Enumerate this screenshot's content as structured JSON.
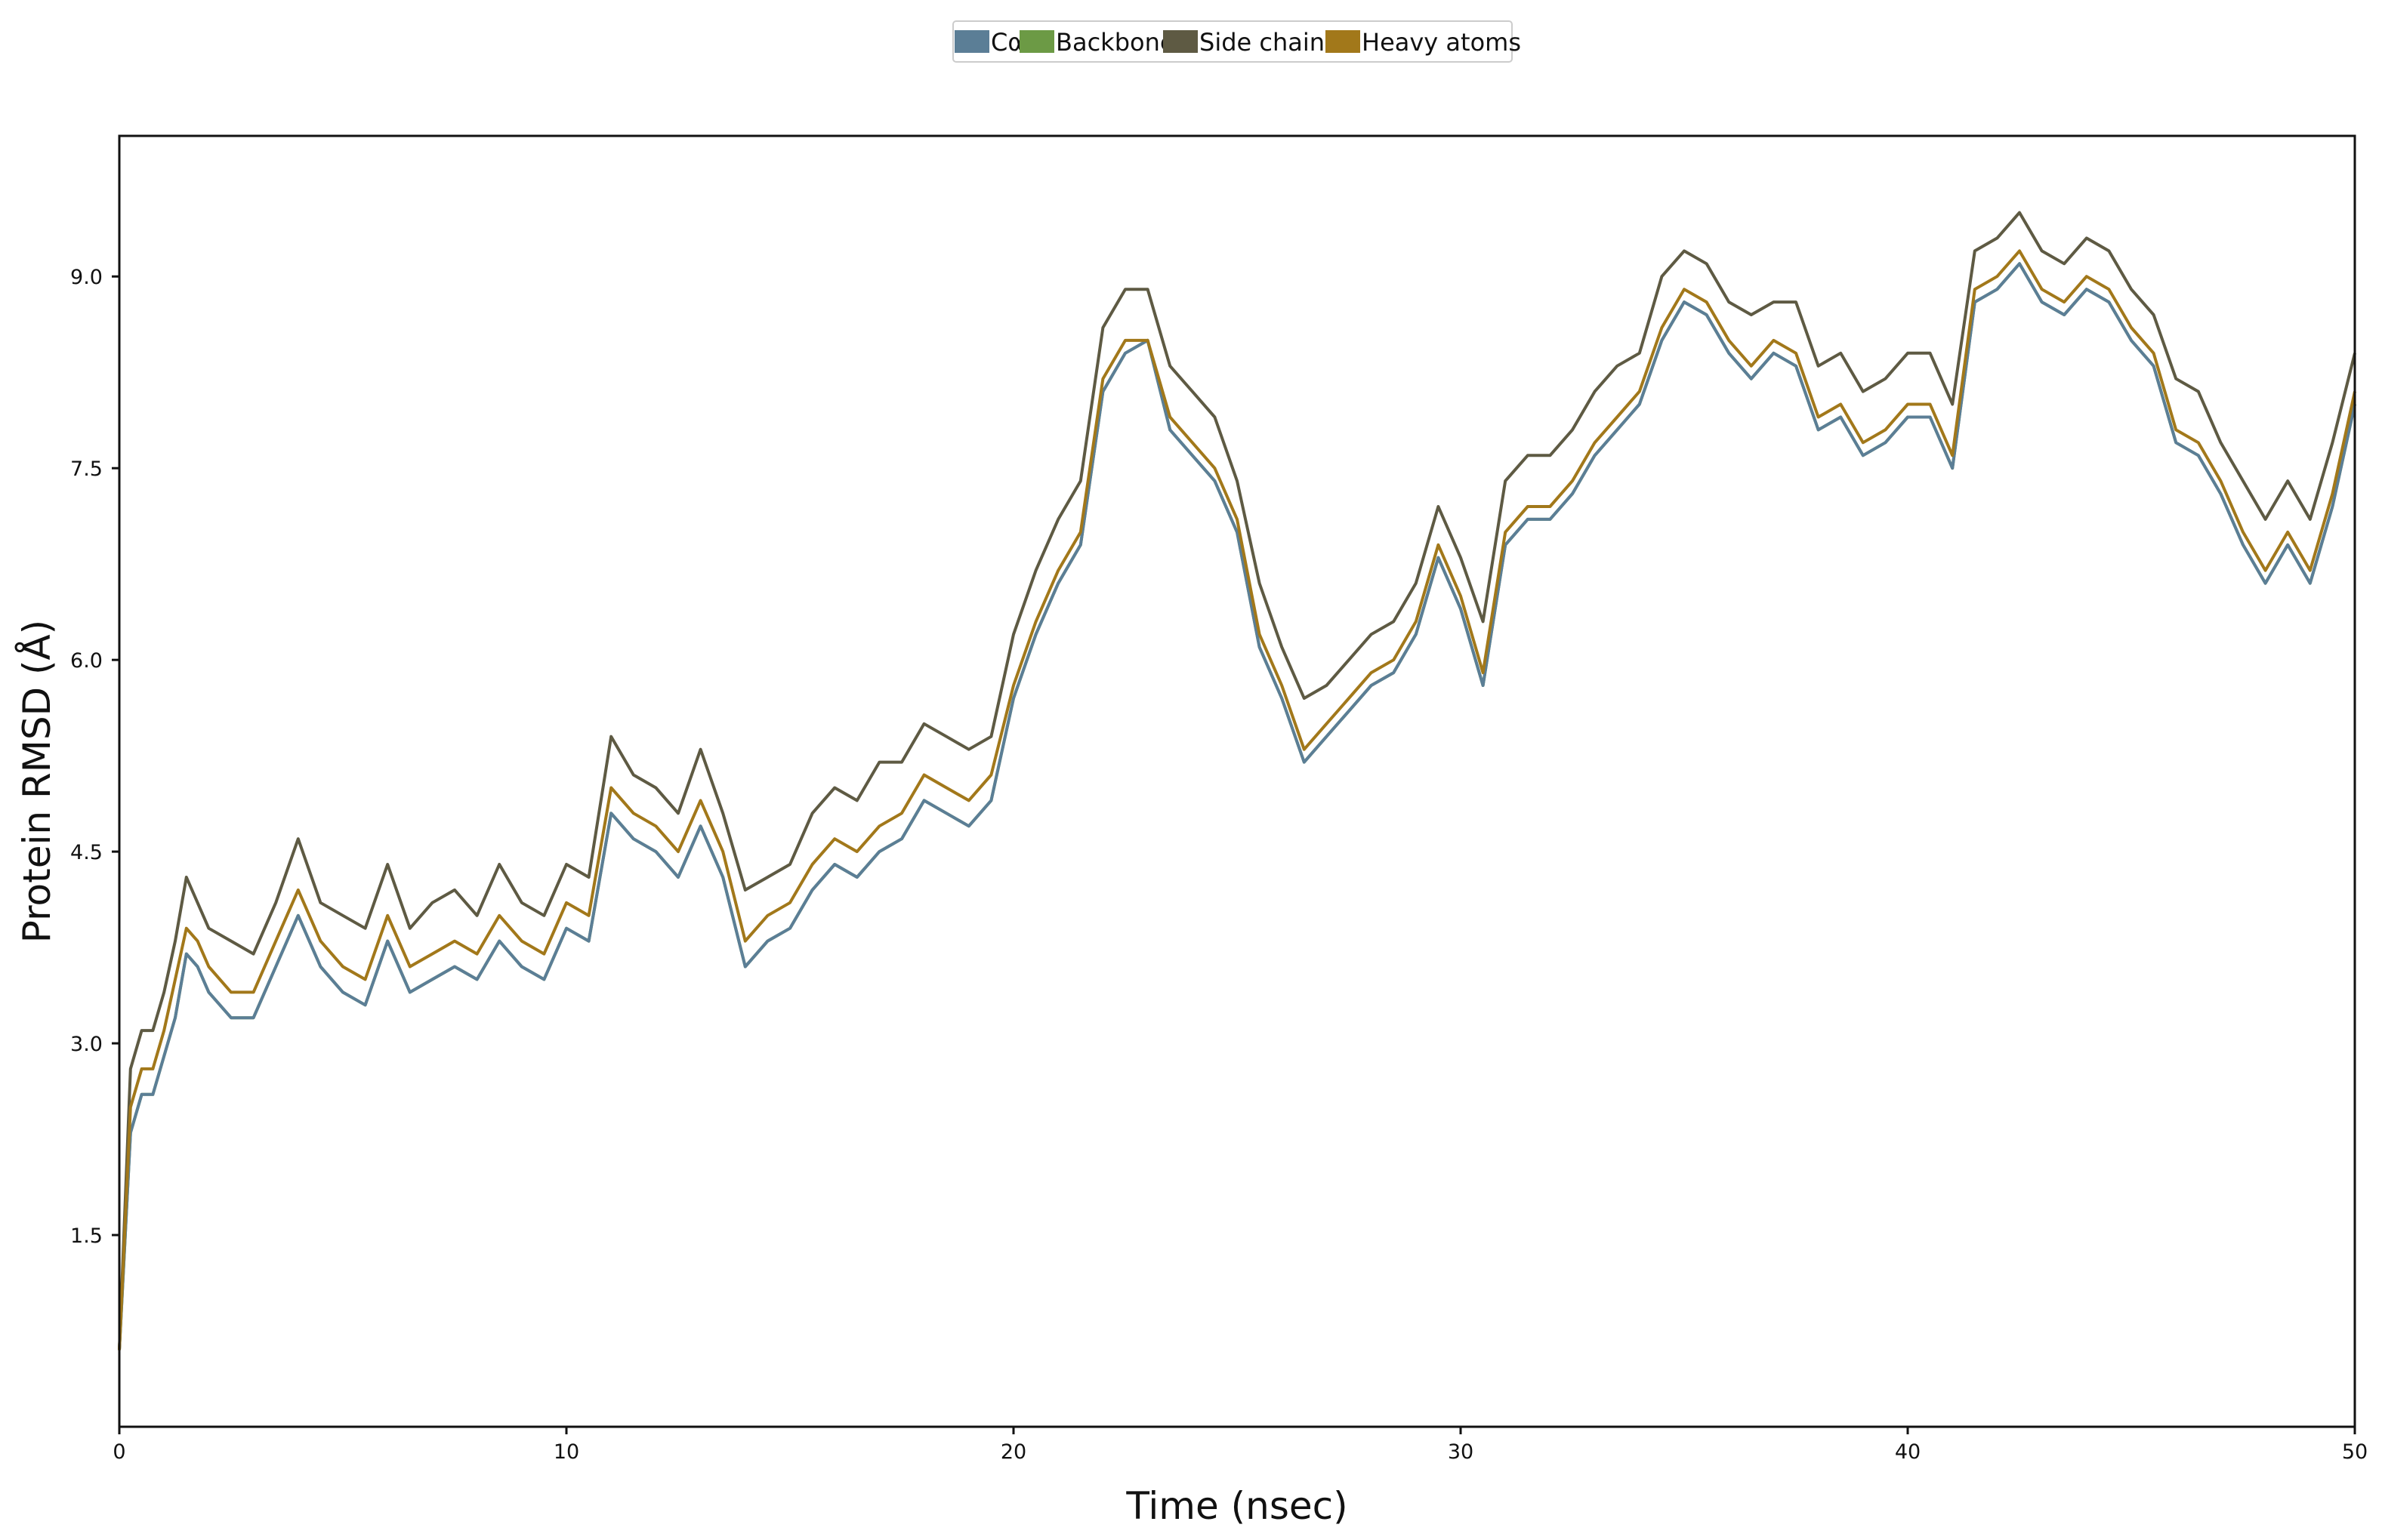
{
  "chart_data": {
    "type": "line",
    "title": "",
    "xlabel": "Time (nsec)",
    "ylabel": "Protein RMSD (Å)",
    "xlim": [
      0,
      50
    ],
    "ylim": [
      0,
      10.1
    ],
    "xticks": [
      0,
      10,
      20,
      30,
      40,
      50
    ],
    "yticks": [
      1.5,
      3.0,
      4.5,
      6.0,
      7.5,
      9.0
    ],
    "xtick_labels": [
      "0",
      "10",
      "20",
      "30",
      "40",
      "50"
    ],
    "ytick_labels": [
      "1.5",
      "3.0",
      "4.5",
      "6.0",
      "7.5",
      "9.0"
    ],
    "grid": false,
    "legend_position": "top-center",
    "x": [
      0,
      0.25,
      0.5,
      0.75,
      1,
      1.25,
      1.5,
      1.75,
      2,
      2.5,
      3,
      3.5,
      4,
      4.5,
      5,
      5.5,
      6,
      6.5,
      7,
      7.5,
      8,
      8.5,
      9,
      9.5,
      10,
      10.5,
      11,
      11.5,
      12,
      12.5,
      13,
      13.5,
      14,
      14.5,
      15,
      15.5,
      16,
      16.5,
      17,
      17.5,
      18,
      18.5,
      19,
      19.5,
      20,
      20.5,
      21,
      21.5,
      22,
      22.5,
      23,
      23.5,
      24,
      24.5,
      25,
      25.5,
      26,
      26.5,
      27,
      27.5,
      28,
      28.5,
      29,
      29.5,
      30,
      30.5,
      31,
      31.5,
      32,
      32.5,
      33,
      33.5,
      34,
      34.5,
      35,
      35.5,
      36,
      36.5,
      37,
      37.5,
      38,
      38.5,
      39,
      39.5,
      40,
      40.5,
      41,
      41.5,
      42,
      42.5,
      43,
      43.5,
      44,
      44.5,
      45,
      45.5,
      46,
      46.5,
      47,
      47.5,
      48,
      48.5,
      49,
      49.5,
      50
    ],
    "series": [
      {
        "name": "Cα",
        "color": "#5b7e96",
        "values": [
          0.6,
          2.3,
          2.6,
          2.6,
          2.9,
          3.2,
          3.7,
          3.6,
          3.4,
          3.2,
          3.2,
          3.6,
          4.0,
          3.6,
          3.4,
          3.3,
          3.8,
          3.4,
          3.5,
          3.6,
          3.5,
          3.8,
          3.6,
          3.5,
          3.9,
          3.8,
          4.8,
          4.6,
          4.5,
          4.3,
          4.7,
          4.3,
          3.6,
          3.8,
          3.9,
          4.2,
          4.4,
          4.3,
          4.5,
          4.6,
          4.9,
          4.8,
          4.7,
          4.9,
          5.7,
          6.2,
          6.6,
          6.9,
          8.1,
          8.4,
          8.5,
          7.8,
          7.6,
          7.4,
          7.0,
          6.1,
          5.7,
          5.2,
          5.4,
          5.6,
          5.8,
          5.9,
          6.2,
          6.8,
          6.4,
          5.8,
          6.9,
          7.1,
          7.1,
          7.3,
          7.6,
          7.8,
          8.0,
          8.5,
          8.8,
          8.7,
          8.4,
          8.2,
          8.4,
          8.3,
          7.8,
          7.9,
          7.6,
          7.7,
          7.9,
          7.9,
          7.5,
          8.8,
          8.9,
          9.1,
          8.8,
          8.7,
          8.9,
          8.8,
          8.5,
          8.3,
          7.7,
          7.6,
          7.3,
          6.9,
          6.6,
          6.9,
          6.6,
          7.2,
          8.0
        ]
      },
      {
        "name": "Backbone",
        "color": "#6c9a45",
        "values": [
          0.6,
          2.3,
          2.6,
          2.6,
          2.9,
          3.2,
          3.7,
          3.6,
          3.4,
          3.2,
          3.2,
          3.6,
          4.0,
          3.6,
          3.4,
          3.3,
          3.8,
          3.4,
          3.5,
          3.6,
          3.5,
          3.8,
          3.6,
          3.5,
          3.9,
          3.8,
          4.8,
          4.6,
          4.5,
          4.3,
          4.7,
          4.3,
          3.6,
          3.8,
          3.9,
          4.2,
          4.4,
          4.3,
          4.5,
          4.6,
          4.9,
          4.8,
          4.7,
          4.9,
          5.7,
          6.2,
          6.6,
          6.9,
          8.1,
          8.4,
          8.5,
          7.8,
          7.6,
          7.4,
          7.0,
          6.1,
          5.7,
          5.2,
          5.4,
          5.6,
          5.8,
          5.9,
          6.2,
          6.8,
          6.4,
          5.8,
          6.9,
          7.1,
          7.1,
          7.3,
          7.6,
          7.8,
          8.0,
          8.5,
          8.8,
          8.7,
          8.4,
          8.2,
          8.4,
          8.3,
          7.8,
          7.9,
          7.6,
          7.7,
          7.9,
          7.9,
          7.5,
          8.8,
          8.9,
          9.1,
          8.8,
          8.7,
          8.9,
          8.8,
          8.5,
          8.3,
          7.7,
          7.6,
          7.3,
          6.9,
          6.6,
          6.9,
          6.6,
          7.2,
          8.0
        ]
      },
      {
        "name": "Side chains",
        "color": "#5e5a43",
        "values": [
          0.6,
          2.8,
          3.1,
          3.1,
          3.4,
          3.8,
          4.3,
          4.1,
          3.9,
          3.8,
          3.7,
          4.1,
          4.6,
          4.1,
          4.0,
          3.9,
          4.4,
          3.9,
          4.1,
          4.2,
          4.0,
          4.4,
          4.1,
          4.0,
          4.4,
          4.3,
          5.4,
          5.1,
          5.0,
          4.8,
          5.3,
          4.8,
          4.2,
          4.3,
          4.4,
          4.8,
          5.0,
          4.9,
          5.2,
          5.2,
          5.5,
          5.4,
          5.3,
          5.4,
          6.2,
          6.7,
          7.1,
          7.4,
          8.6,
          8.9,
          8.9,
          8.3,
          8.1,
          7.9,
          7.4,
          6.6,
          6.1,
          5.7,
          5.8,
          6.0,
          6.2,
          6.3,
          6.6,
          7.2,
          6.8,
          6.3,
          7.4,
          7.6,
          7.6,
          7.8,
          8.1,
          8.3,
          8.4,
          9.0,
          9.2,
          9.1,
          8.8,
          8.7,
          8.8,
          8.8,
          8.3,
          8.4,
          8.1,
          8.2,
          8.4,
          8.4,
          8.0,
          9.2,
          9.3,
          9.5,
          9.2,
          9.1,
          9.3,
          9.2,
          8.9,
          8.7,
          8.2,
          8.1,
          7.7,
          7.4,
          7.1,
          7.4,
          7.1,
          7.7,
          8.4
        ]
      },
      {
        "name": "Heavy atoms",
        "color": "#a2781a",
        "values": [
          0.6,
          2.5,
          2.8,
          2.8,
          3.1,
          3.5,
          3.9,
          3.8,
          3.6,
          3.4,
          3.4,
          3.8,
          4.2,
          3.8,
          3.6,
          3.5,
          4.0,
          3.6,
          3.7,
          3.8,
          3.7,
          4.0,
          3.8,
          3.7,
          4.1,
          4.0,
          5.0,
          4.8,
          4.7,
          4.5,
          4.9,
          4.5,
          3.8,
          4.0,
          4.1,
          4.4,
          4.6,
          4.5,
          4.7,
          4.8,
          5.1,
          5.0,
          4.9,
          5.1,
          5.8,
          6.3,
          6.7,
          7.0,
          8.2,
          8.5,
          8.5,
          7.9,
          7.7,
          7.5,
          7.1,
          6.2,
          5.8,
          5.3,
          5.5,
          5.7,
          5.9,
          6.0,
          6.3,
          6.9,
          6.5,
          5.9,
          7.0,
          7.2,
          7.2,
          7.4,
          7.7,
          7.9,
          8.1,
          8.6,
          8.9,
          8.8,
          8.5,
          8.3,
          8.5,
          8.4,
          7.9,
          8.0,
          7.7,
          7.8,
          8.0,
          8.0,
          7.6,
          8.9,
          9.0,
          9.2,
          8.9,
          8.8,
          9.0,
          8.9,
          8.6,
          8.4,
          7.8,
          7.7,
          7.4,
          7.0,
          6.7,
          7.0,
          6.7,
          7.3,
          8.1
        ]
      }
    ]
  }
}
